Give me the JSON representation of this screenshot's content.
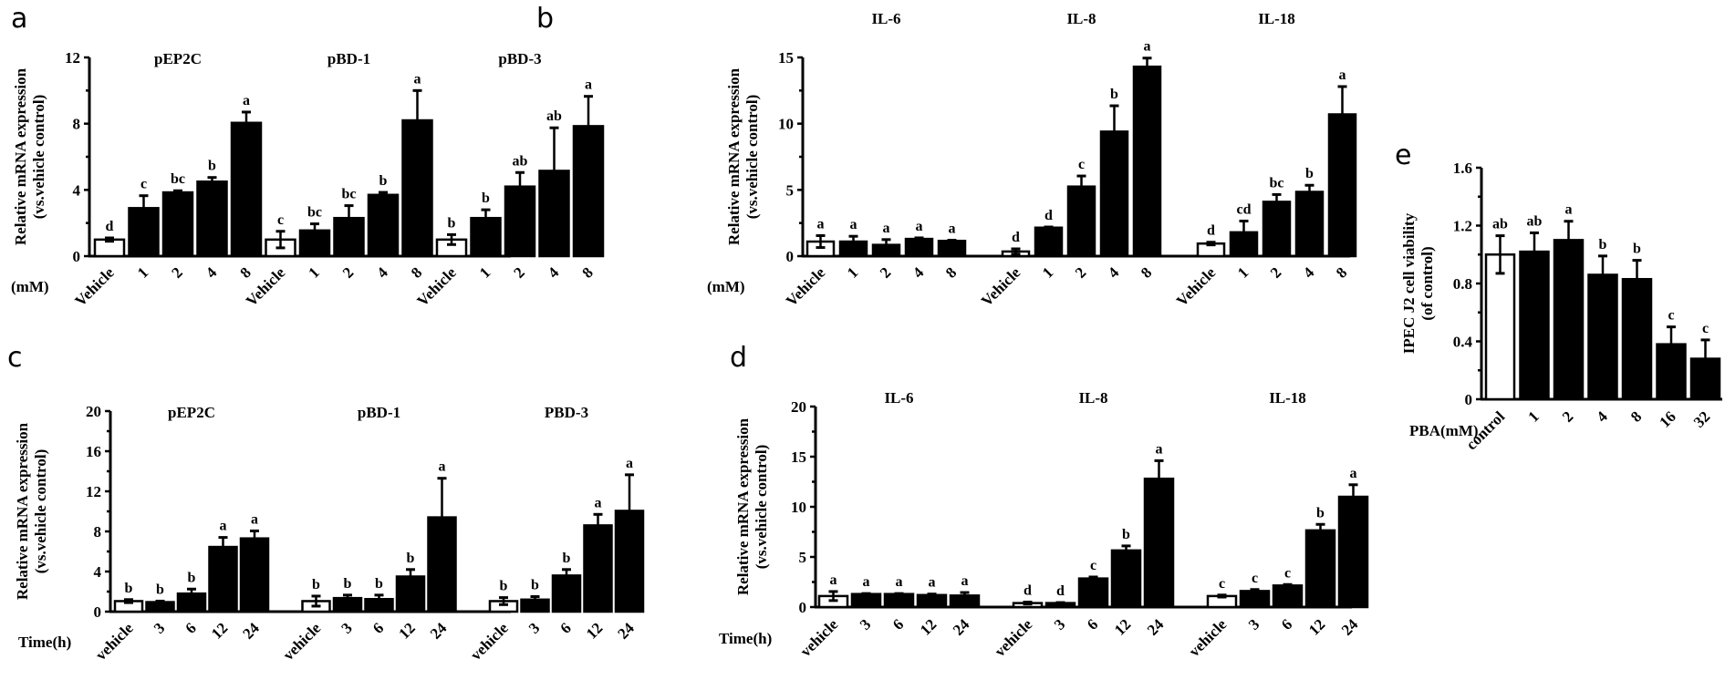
{
  "chart_data": [
    {
      "id": "a",
      "panel_label": "a",
      "type": "bar",
      "ylabel": [
        "Relative mRNA expression",
        "(vs.vehicle control)"
      ],
      "xunit": "(mM)",
      "ylim": [
        0,
        12
      ],
      "yticks": [
        0,
        4,
        8,
        12
      ],
      "ytick_labels": [
        "0",
        "4",
        "8",
        "12"
      ],
      "minor_ticks": [
        2,
        6,
        10
      ],
      "grid": false,
      "groups": [
        {
          "title": "pEP2C",
          "categories": [
            "Vehicle",
            "1",
            "2",
            "4",
            "8"
          ],
          "values": [
            1.0,
            2.9,
            3.85,
            4.5,
            8.05
          ],
          "errors": [
            0.1,
            0.75,
            0.1,
            0.25,
            0.65
          ],
          "labels": [
            "d",
            "c",
            "bc",
            "b",
            "a"
          ],
          "control_index": 0
        },
        {
          "title": "pBD-1",
          "categories": [
            "Vehicle",
            "1",
            "2",
            "4",
            "8"
          ],
          "values": [
            1.0,
            1.55,
            2.3,
            3.7,
            8.2
          ],
          "errors": [
            0.5,
            0.4,
            0.75,
            0.15,
            1.8
          ],
          "labels": [
            "c",
            "bc",
            "bc",
            "b",
            "a"
          ],
          "control_index": 0
        },
        {
          "title": "pBD-3",
          "categories": [
            "Vehicle",
            "1",
            "2",
            "4",
            "8"
          ],
          "values": [
            1.0,
            2.3,
            4.2,
            5.15,
            7.85
          ],
          "errors": [
            0.3,
            0.5,
            0.85,
            2.6,
            1.8
          ],
          "labels": [
            "b",
            "b",
            "ab",
            "ab",
            "a"
          ],
          "control_index": 0
        }
      ]
    },
    {
      "id": "b",
      "panel_label": "b",
      "type": "bar",
      "ylabel": [
        "Relative mRNA expression",
        "(vs.vehicle control)"
      ],
      "xunit": "(mM)",
      "ylim": [
        0,
        15
      ],
      "yticks": [
        0,
        5,
        10,
        15
      ],
      "ytick_labels": [
        "0",
        "5",
        "10",
        "15"
      ],
      "minor_ticks": [
        2.5,
        7.5,
        12.5
      ],
      "grid": false,
      "groups": [
        {
          "title": "IL-6",
          "categories": [
            "Vehicle",
            "1",
            "2",
            "4",
            "8"
          ],
          "values": [
            1.1,
            1.1,
            0.85,
            1.3,
            1.15
          ],
          "errors": [
            0.45,
            0.4,
            0.4,
            0.08,
            0.05
          ],
          "labels": [
            "a",
            "a",
            "a",
            "a",
            "a"
          ],
          "control_index": 0
        },
        {
          "title": "IL-8",
          "categories": [
            "Vehicle",
            "1",
            "2",
            "4",
            "8"
          ],
          "values": [
            0.35,
            2.15,
            5.25,
            9.4,
            14.3
          ],
          "errors": [
            0.2,
            0.05,
            0.8,
            1.95,
            0.65
          ],
          "labels": [
            "d",
            "d",
            "c",
            "b",
            "a"
          ],
          "control_index": 0
        },
        {
          "title": "IL-18",
          "categories": [
            "Vehicle",
            "1",
            "2",
            "4",
            "8"
          ],
          "values": [
            0.95,
            1.8,
            4.1,
            4.85,
            10.7
          ],
          "errors": [
            0.1,
            0.85,
            0.55,
            0.5,
            2.1
          ],
          "labels": [
            "d",
            "cd",
            "bc",
            "b",
            "a"
          ],
          "control_index": 0
        }
      ]
    },
    {
      "id": "c",
      "panel_label": "c",
      "type": "bar",
      "ylabel": [
        "Relative mRNA expression",
        "(vs.vehicle control)"
      ],
      "xunit": "Time(h)",
      "ylim": [
        0,
        20
      ],
      "yticks": [
        0,
        4,
        8,
        12,
        16,
        20
      ],
      "ytick_labels": [
        "0",
        "4",
        "8",
        "12",
        "16",
        "20"
      ],
      "minor_ticks": [
        2,
        6,
        10,
        14,
        18
      ],
      "grid": false,
      "groups": [
        {
          "title": "pEP2C",
          "categories": [
            "vehicle",
            "3",
            "6",
            "12",
            "24"
          ],
          "values": [
            1.05,
            0.95,
            1.8,
            6.45,
            7.3
          ],
          "errors": [
            0.15,
            0.1,
            0.45,
            0.95,
            0.75
          ],
          "labels": [
            "b",
            "b",
            "b",
            "a",
            "a"
          ],
          "control_index": 0
        },
        {
          "title": "pBD-1",
          "categories": [
            "vehicle",
            "3",
            "6",
            "12",
            "24"
          ],
          "values": [
            1.05,
            1.35,
            1.25,
            3.5,
            9.4
          ],
          "errors": [
            0.5,
            0.3,
            0.4,
            0.7,
            3.9
          ],
          "labels": [
            "b",
            "b",
            "b",
            "b",
            "a"
          ],
          "control_index": 0
        },
        {
          "title": "PBD-3",
          "categories": [
            "vehicle",
            "3",
            "6",
            "12",
            "24"
          ],
          "values": [
            1.05,
            1.2,
            3.6,
            8.6,
            10.05
          ],
          "errors": [
            0.35,
            0.3,
            0.6,
            1.1,
            3.6
          ],
          "labels": [
            "b",
            "b",
            "b",
            "a",
            "a"
          ],
          "control_index": 0
        }
      ]
    },
    {
      "id": "d",
      "panel_label": "d",
      "type": "bar",
      "ylabel": [
        "Relative mRNA expression",
        "(vs.vehicle control)"
      ],
      "xunit": "Time(h)",
      "ylim": [
        0,
        20
      ],
      "yticks": [
        0,
        5,
        10,
        15,
        20
      ],
      "ytick_labels": [
        "0",
        "5",
        "10",
        "15",
        "20"
      ],
      "minor_ticks": [
        2.5,
        7.5,
        12.5,
        17.5
      ],
      "grid": false,
      "groups": [
        {
          "title": "IL-6",
          "categories": [
            "vehicle",
            "3",
            "6",
            "12",
            "24"
          ],
          "values": [
            1.1,
            1.3,
            1.3,
            1.2,
            1.15
          ],
          "errors": [
            0.45,
            0.05,
            0.05,
            0.1,
            0.3
          ],
          "labels": [
            "a",
            "a",
            "a",
            "a",
            "a"
          ],
          "control_index": 0
        },
        {
          "title": "IL-8",
          "categories": [
            "vehicle",
            "3",
            "6",
            "12",
            "24"
          ],
          "values": [
            0.4,
            0.4,
            2.85,
            5.65,
            12.8
          ],
          "errors": [
            0.1,
            0.05,
            0.15,
            0.45,
            1.8
          ],
          "labels": [
            "d",
            "d",
            "c",
            "b",
            "a"
          ],
          "control_index": 0
        },
        {
          "title": "IL-18",
          "categories": [
            "vehicle",
            "3",
            "6",
            "12",
            "24"
          ],
          "values": [
            1.1,
            1.6,
            2.15,
            7.65,
            11.0
          ],
          "errors": [
            0.1,
            0.15,
            0.1,
            0.6,
            1.2
          ],
          "labels": [
            "c",
            "c",
            "c",
            "b",
            "a"
          ],
          "control_index": 0
        }
      ]
    },
    {
      "id": "e",
      "panel_label": "e",
      "type": "bar",
      "ylabel": [
        "IPEC J2 cell viability",
        "(of control)"
      ],
      "xunit": "PBA(mM)",
      "ylim": [
        0,
        1.6
      ],
      "yticks": [
        0,
        0.4,
        0.8,
        1.2,
        1.6
      ],
      "ytick_labels": [
        "0",
        "0.4",
        "0.8",
        "1.2",
        "1.6"
      ],
      "minor_ticks": [
        0.2,
        0.6,
        1.0,
        1.4
      ],
      "grid": false,
      "groups": [
        {
          "title": "",
          "categories": [
            "control",
            "1",
            "2",
            "4",
            "8",
            "16",
            "32"
          ],
          "values": [
            1.0,
            1.02,
            1.1,
            0.86,
            0.83,
            0.38,
            0.28
          ],
          "errors": [
            0.13,
            0.13,
            0.13,
            0.13,
            0.13,
            0.12,
            0.13
          ],
          "labels": [
            "ab",
            "ab",
            "a",
            "b",
            "b",
            "c",
            "c"
          ],
          "control_index": 0,
          "symmetric_error_on_control": true
        }
      ]
    }
  ]
}
